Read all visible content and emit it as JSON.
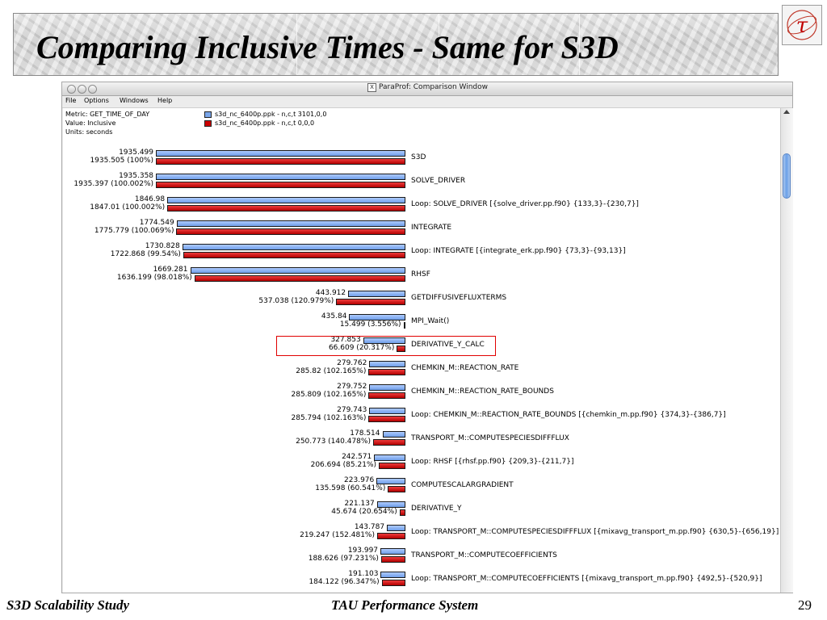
{
  "slide": {
    "title": "Comparing Inclusive Times - Same for S3D",
    "footer_left": "S3D Scalability Study",
    "footer_center": "TAU Performance System",
    "page_number": "29",
    "logo_glyph": "τ"
  },
  "window": {
    "title": "ParaProf: Comparison Window",
    "title_icon": "X"
  },
  "menu": [
    "File",
    "Options",
    "Windows",
    "Help"
  ],
  "info": {
    "metric": "Metric: GET_TIME_OF_DAY",
    "value": "Value: Inclusive",
    "units": "Units: seconds"
  },
  "legend": [
    {
      "label": "s3d_nc_6400p.ppk - n,c,t 3101,0,0",
      "color": "#7aa6ea"
    },
    {
      "label": "s3d_nc_6400p.ppk - n,c,t 0,0,0",
      "color": "#cc0000"
    }
  ],
  "colors": {
    "highlight": "#e00000",
    "blue_bar": "#7aa6ea",
    "red_bar": "#cc0000"
  },
  "highlighted_row": "MPI_Wait()",
  "chart_data": {
    "type": "bar",
    "orientation": "horizontal",
    "metric": "GET_TIME_OF_DAY",
    "value_type": "Inclusive",
    "units": "seconds",
    "series": [
      {
        "name": "s3d_nc_6400p.ppk - n,c,t 3101,0,0"
      },
      {
        "name": "s3d_nc_6400p.ppk - n,c,t 0,0,0"
      }
    ],
    "rows": [
      {
        "name": "S3D",
        "blue": 1935.499,
        "blue_text": "1935.499",
        "red": 1935.505,
        "red_text": "1935.505 (100%)"
      },
      {
        "name": "SOLVE_DRIVER",
        "blue": 1935.358,
        "blue_text": "1935.358",
        "red": 1935.397,
        "red_text": "1935.397 (100.002%)"
      },
      {
        "name": "Loop: SOLVE_DRIVER [{solve_driver.pp.f90} {133,3}-{230,7}]",
        "blue": 1846.98,
        "blue_text": "1846.98",
        "red": 1847.01,
        "red_text": "1847.01 (100.002%)"
      },
      {
        "name": "INTEGRATE",
        "blue": 1774.549,
        "blue_text": "1774.549",
        "red": 1775.779,
        "red_text": "1775.779 (100.069%)"
      },
      {
        "name": "Loop: INTEGRATE [{integrate_erk.pp.f90} {73,3}-{93,13}]",
        "blue": 1730.828,
        "blue_text": "1730.828",
        "red": 1722.868,
        "red_text": "1722.868 (99.54%)"
      },
      {
        "name": "RHSF",
        "blue": 1669.281,
        "blue_text": "1669.281",
        "red": 1636.199,
        "red_text": "1636.199 (98.018%)"
      },
      {
        "name": "GETDIFFUSIVEFLUXTERMS",
        "blue": 443.912,
        "blue_text": "443.912",
        "red": 537.038,
        "red_text": "537.038 (120.979%)"
      },
      {
        "name": "MPI_Wait()",
        "blue": 435.84,
        "blue_text": "435.84",
        "red": 15.499,
        "red_text": "15.499 (3.556%)"
      },
      {
        "name": "DERIVATIVE_Y_CALC",
        "blue": 327.853,
        "blue_text": "327.853",
        "red": 66.609,
        "red_text": "66.609 (20.317%)"
      },
      {
        "name": "CHEMKIN_M::REACTION_RATE",
        "blue": 279.762,
        "blue_text": "279.762",
        "red": 285.82,
        "red_text": "285.82 (102.165%)"
      },
      {
        "name": "CHEMKIN_M::REACTION_RATE_BOUNDS",
        "blue": 279.752,
        "blue_text": "279.752",
        "red": 285.809,
        "red_text": "285.809 (102.165%)"
      },
      {
        "name": "Loop: CHEMKIN_M::REACTION_RATE_BOUNDS [{chemkin_m.pp.f90} {374,3}-{386,7}]",
        "blue": 279.743,
        "blue_text": "279.743",
        "red": 285.794,
        "red_text": "285.794 (102.163%)"
      },
      {
        "name": "TRANSPORT_M::COMPUTESPECIESDIFFFLUX",
        "blue": 178.514,
        "blue_text": "178.514",
        "red": 250.773,
        "red_text": "250.773 (140.478%)"
      },
      {
        "name": "Loop: RHSF [{rhsf.pp.f90} {209,3}-{211,7}]",
        "blue": 242.571,
        "blue_text": "242.571",
        "red": 206.694,
        "red_text": "206.694 (85.21%)"
      },
      {
        "name": "COMPUTESCALARGRADIENT",
        "blue": 223.976,
        "blue_text": "223.976",
        "red": 135.598,
        "red_text": "135.598 (60.541%)"
      },
      {
        "name": "DERIVATIVE_Y",
        "blue": 221.137,
        "blue_text": "221.137",
        "red": 45.674,
        "red_text": "45.674 (20.654%)"
      },
      {
        "name": "Loop: TRANSPORT_M::COMPUTESPECIESDIFFFLUX [{mixavg_transport_m.pp.f90} {630,5}-{656,19}]",
        "blue": 143.787,
        "blue_text": "143.787",
        "red": 219.247,
        "red_text": "219.247 (152.481%)"
      },
      {
        "name": "TRANSPORT_M::COMPUTECOEFFICIENTS",
        "blue": 193.997,
        "blue_text": "193.997",
        "red": 188.626,
        "red_text": "188.626 (97.231%)"
      },
      {
        "name": "Loop: TRANSPORT_M::COMPUTECOEFFICIENTS [{mixavg_transport_m.pp.f90} {492,5}-{520,9}]",
        "blue": 191.103,
        "blue_text": "191.103",
        "red": 184.122,
        "red_text": "184.122 (96.347%)"
      }
    ]
  }
}
